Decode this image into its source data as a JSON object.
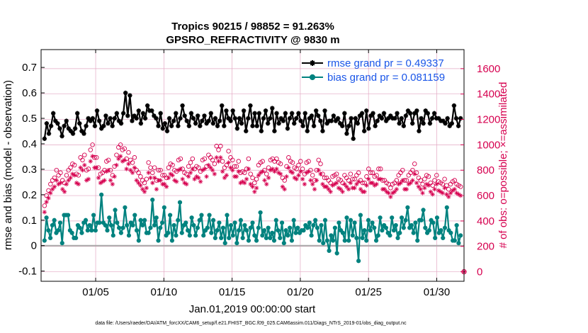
{
  "chart_data": {
    "type": "line",
    "title": "Tropics 90215 / 98852 = 91.263%",
    "subtitle": "GPSRO_REFRACTIVITY @ 9830 m",
    "xlabel": "Jan.01,2019 00:00:00 start",
    "ylabel_left": "rmse and bias (model - observation)",
    "ylabel_right": "# of obs: o=possible; ×=assimilated",
    "footnote": "data file: /Users/raeder/DAI/ATM_forcXX/CAM6_setup/f.e21.FHIST_BGC.f09_025.CAM6assim.011/Diags_NTrS_2019-01/obs_diag_output.nc",
    "x_range_days": [
      1,
      32
    ],
    "x_ticks": [
      {
        "day": 5,
        "label": "01/05"
      },
      {
        "day": 10,
        "label": "01/10"
      },
      {
        "day": 15,
        "label": "01/15"
      },
      {
        "day": 20,
        "label": "01/20"
      },
      {
        "day": 25,
        "label": "01/25"
      },
      {
        "day": 30,
        "label": "01/30"
      }
    ],
    "ylim_left": [
      -0.14,
      0.77
    ],
    "yticks_left": [
      {
        "v": -0.1,
        "label": "-0.1"
      },
      {
        "v": 0,
        "label": "0"
      },
      {
        "v": 0.1,
        "label": "0.1"
      },
      {
        "v": 0.2,
        "label": "0.2"
      },
      {
        "v": 0.3,
        "label": "0.3"
      },
      {
        "v": 0.4,
        "label": "0.4"
      },
      {
        "v": 0.5,
        "label": "0.5"
      },
      {
        "v": 0.6,
        "label": "0.6"
      },
      {
        "v": 0.7,
        "label": "0.7"
      }
    ],
    "ylim_right": [
      -75,
      1750
    ],
    "yticks_right": [
      {
        "v": 0,
        "label": "0"
      },
      {
        "v": 200,
        "label": "200"
      },
      {
        "v": 400,
        "label": "400"
      },
      {
        "v": 600,
        "label": "600"
      },
      {
        "v": 800,
        "label": "800"
      },
      {
        "v": 1000,
        "label": "1000"
      },
      {
        "v": 1200,
        "label": "1200"
      },
      {
        "v": 1400,
        "label": "1400"
      },
      {
        "v": 1600,
        "label": "1600"
      }
    ],
    "grid": true,
    "legend_position": "top-right",
    "colors": {
      "rmse": "#000000",
      "bias": "#00827f",
      "obs": "#d6004f",
      "zero_line": "#aaaaaa",
      "grid": "#e3a8c3",
      "legend_text": "#1a56e8"
    },
    "series": [
      {
        "name": "rmse grand pr = 0.49337",
        "key": "rmse",
        "values": [
          0.42,
          0.48,
          0.44,
          0.47,
          0.52,
          0.49,
          0.48,
          0.46,
          0.43,
          0.47,
          0.49,
          0.46,
          0.45,
          0.44,
          0.46,
          0.52,
          0.48,
          0.45,
          0.44,
          0.47,
          0.5,
          0.49,
          0.5,
          0.47,
          0.53,
          0.49,
          0.46,
          0.47,
          0.51,
          0.48,
          0.5,
          0.47,
          0.5,
          0.52,
          0.49,
          0.48,
          0.52,
          0.6,
          0.51,
          0.59,
          0.49,
          0.51,
          0.5,
          0.53,
          0.48,
          0.52,
          0.5,
          0.55,
          0.53,
          0.53,
          0.51,
          0.5,
          0.47,
          0.52,
          0.46,
          0.48,
          0.45,
          0.5,
          0.47,
          0.49,
          0.52,
          0.47,
          0.5,
          0.55,
          0.51,
          0.49,
          0.47,
          0.52,
          0.5,
          0.48,
          0.51,
          0.47,
          0.49,
          0.51,
          0.48,
          0.49,
          0.52,
          0.48,
          0.5,
          0.47,
          0.49,
          0.55,
          0.47,
          0.53,
          0.5,
          0.49,
          0.53,
          0.5,
          0.46,
          0.5,
          0.48,
          0.53,
          0.45,
          0.5,
          0.55,
          0.47,
          0.52,
          0.47,
          0.52,
          0.45,
          0.5,
          0.53,
          0.48,
          0.5,
          0.54,
          0.45,
          0.52,
          0.48,
          0.5,
          0.49,
          0.52,
          0.46,
          0.5,
          0.52,
          0.48,
          0.5,
          0.52,
          0.49,
          0.47,
          0.52,
          0.45,
          0.5,
          0.51,
          0.47,
          0.53,
          0.51,
          0.49,
          0.45,
          0.53,
          0.48,
          0.49,
          0.49,
          0.51,
          0.49,
          0.5,
          0.48,
          0.47,
          0.52,
          0.44,
          0.47,
          0.5,
          0.42,
          0.5,
          0.48,
          0.51,
          0.52,
          0.45,
          0.53,
          0.46,
          0.51,
          0.52,
          0.47,
          0.49,
          0.51,
          0.5,
          0.52,
          0.49,
          0.5,
          0.51,
          0.5,
          0.5,
          0.52,
          0.48,
          0.5,
          0.47,
          0.51,
          0.53,
          0.52,
          0.48,
          0.52,
          0.53,
          0.45,
          0.5,
          0.48,
          0.53,
          0.52,
          0.48,
          0.5,
          0.52,
          0.5,
          0.5,
          0.49,
          0.49,
          0.48,
          0.5,
          0.47,
          0.48,
          0.55,
          0.5,
          0.47,
          0.5
        ]
      },
      {
        "name": "bias grand pr = 0.081159",
        "key": "bias",
        "values": [
          0.02,
          0.11,
          0.06,
          0.03,
          0.08,
          0.1,
          0.05,
          0.06,
          0.09,
          0.01,
          0.12,
          0.12,
          0.12,
          0.06,
          0.05,
          0.03,
          0.03,
          0.08,
          0.07,
          0.05,
          0.09,
          0.1,
          0.06,
          0.08,
          0.06,
          0.12,
          0.06,
          0.09,
          0.09,
          0.2,
          0.09,
          0.08,
          0.06,
          0.11,
          0.08,
          0.04,
          0.14,
          0.09,
          0.07,
          0.05,
          0.07,
          0.15,
          0.08,
          0.04,
          0.09,
          0.08,
          0.12,
          0.06,
          0.02,
          0.1,
          0.08,
          0.1,
          0.05,
          0.05,
          0.07,
          0.18,
          0.08,
          0.11,
          0.02,
          0.07,
          0.09,
          0.15,
          0.04,
          0.05,
          0.12,
          0.02,
          0.08,
          0.04,
          0.1,
          0.17,
          0.05,
          0.08,
          0.09,
          0.06,
          0.04,
          0.11,
          0.08,
          0.04,
          0.07,
          0.1,
          0.12,
          0.04,
          0.06,
          0.07,
          0.12,
          0.05,
          0.1,
          0.03,
          0.06,
          0.09,
          0.03,
          0.07,
          0.01,
          0.12,
          0.03,
          0.08,
          0.04,
          0.09,
          0.01,
          0.06,
          0.1,
          0.03,
          0.08,
          0.06,
          0.02,
          0.07,
          0.09,
          0.04,
          0.02,
          0.07,
          0.13,
          0.04,
          0.06,
          0.03,
          0.07,
          0.03,
          0.05,
          0.02,
          0.1,
          0.06,
          0.03,
          0.09,
          0.01,
          0.06,
          0.04,
          0.07,
          0.02,
          0.1,
          0.05,
          0.07,
          0.05,
          0.06,
          0.06,
          0.08,
          0.07,
          0.09,
          0.04,
          0.08,
          0.1,
          0.07,
          0.02,
          0.08,
          0.01,
          0.1,
          0.02,
          -0.02,
          0.04,
          0.02,
          0.07,
          -0.03,
          0.09,
          0.06,
          0.05,
          0.02,
          0.11,
          0.02,
          0.1,
          0.04,
          0.09,
          0.03,
          -0.06,
          0.12,
          0.03,
          0.06,
          0.02,
          0.1,
          0.06,
          0.09,
          0.07,
          0.02,
          0.04,
          0.11,
          0.06,
          0.08,
          0.07,
          0.05,
          0.04,
          0.11,
          0.06,
          0.08,
          0.03,
          0.05,
          0.11,
          0.07,
          0.1,
          0.15,
          0.07,
          0.08,
          0.05,
          0.09,
          0.02,
          0.1,
          0.1,
          0.14,
          0.07,
          0.05,
          0.06,
          0.1,
          0.09,
          0.03,
          0.11,
          0.05,
          0.06,
          0.03,
          0.07,
          0.15,
          0.06,
          0.05,
          0.02,
          0.02,
          0.08,
          0.01,
          0.04
        ]
      },
      {
        "name": "possible",
        "key": "possible",
        "marker": "o",
        "axis": "right",
        "values": [
          520,
          600,
          640,
          690,
          720,
          740,
          800,
          760,
          780,
          720,
          700,
          760,
          800,
          820,
          850,
          840,
          770,
          760,
          900,
          880,
          920,
          800,
          810,
          960,
          1000,
          900,
          900,
          820,
          770,
          780,
          800,
          870,
          880,
          800,
          760,
          830,
          920,
          980,
          1000,
          960,
          970,
          890,
          940,
          880,
          860,
          900,
          800,
          780,
          750,
          720,
          700,
          730,
          860,
          820,
          780,
          820,
          720,
          800,
          800,
          760,
          760,
          740,
          820,
          850,
          840,
          800,
          790,
          880,
          890,
          810,
          780,
          770,
          830,
          860,
          890,
          810,
          830,
          820,
          790,
          880,
          890,
          830,
          920,
          900,
          880,
          850,
          990,
          960,
          990,
          870,
          820,
          840,
          950,
          900,
          880,
          830,
          830,
          870,
          780,
          790,
          780,
          810,
          890,
          770,
          740,
          700,
          730,
          840,
          860,
          870,
          800,
          770,
          820,
          880,
          890,
          870,
          890,
          860,
          850,
          740,
          720,
          830,
          900,
          870,
          860,
          820,
          810,
          840,
          870,
          810,
          770,
          860,
          870,
          800,
          760,
          720,
          800,
          880,
          850,
          770,
          740,
          740,
          720,
          700,
          750,
          760,
          770,
          730,
          720,
          700,
          760,
          740,
          720,
          770,
          730,
          730,
          760,
          780,
          720,
          700,
          700,
          750,
          810,
          780,
          780,
          750,
          760,
          810,
          810,
          720,
          720,
          700,
          690,
          660,
          690,
          700,
          720,
          760,
          780,
          800,
          720,
          720,
          760,
          780,
          800,
          850,
          780,
          740,
          720,
          690,
          730,
          760,
          750,
          700,
          680,
          720,
          760,
          710,
          700,
          690,
          730,
          680,
          650,
          690,
          710,
          720,
          690,
          680,
          670
        ]
      },
      {
        "name": "assimilated",
        "key": "assimilated",
        "marker": "x",
        "axis": "right",
        "values": [
          470,
          550,
          580,
          620,
          650,
          670,
          720,
          690,
          700,
          650,
          630,
          690,
          720,
          740,
          770,
          760,
          700,
          690,
          820,
          800,
          840,
          720,
          730,
          870,
          910,
          820,
          820,
          740,
          700,
          710,
          720,
          790,
          800,
          720,
          690,
          750,
          840,
          890,
          910,
          870,
          880,
          810,
          850,
          800,
          780,
          820,
          720,
          700,
          680,
          650,
          630,
          660,
          780,
          740,
          700,
          740,
          650,
          720,
          720,
          690,
          690,
          670,
          740,
          770,
          760,
          720,
          710,
          800,
          810,
          730,
          700,
          690,
          750,
          780,
          810,
          730,
          750,
          740,
          710,
          800,
          810,
          750,
          840,
          820,
          800,
          770,
          900,
          870,
          900,
          790,
          740,
          760,
          860,
          820,
          800,
          750,
          750,
          790,
          700,
          710,
          700,
          730,
          810,
          690,
          670,
          630,
          660,
          760,
          780,
          790,
          720,
          690,
          740,
          800,
          810,
          790,
          810,
          780,
          770,
          670,
          650,
          750,
          820,
          790,
          780,
          740,
          730,
          760,
          790,
          730,
          690,
          780,
          790,
          720,
          690,
          650,
          720,
          800,
          770,
          690,
          670,
          670,
          650,
          630,
          680,
          690,
          700,
          660,
          650,
          630,
          690,
          670,
          650,
          700,
          660,
          660,
          690,
          710,
          650,
          630,
          630,
          680,
          730,
          700,
          700,
          680,
          690,
          730,
          730,
          650,
          650,
          630,
          620,
          590,
          620,
          630,
          650,
          690,
          700,
          720,
          650,
          650,
          690,
          700,
          720,
          770,
          700,
          670,
          650,
          620,
          660,
          690,
          680,
          630,
          610,
          650,
          690,
          640,
          630,
          620,
          660,
          610,
          590,
          620,
          640,
          650,
          620,
          610,
          600
        ]
      }
    ],
    "extra_markers": [
      {
        "day": 32.0,
        "value": 0,
        "axis": "right",
        "marker": "o"
      },
      {
        "day": 32.0,
        "value": 0,
        "axis": "right",
        "marker": "x"
      }
    ]
  }
}
